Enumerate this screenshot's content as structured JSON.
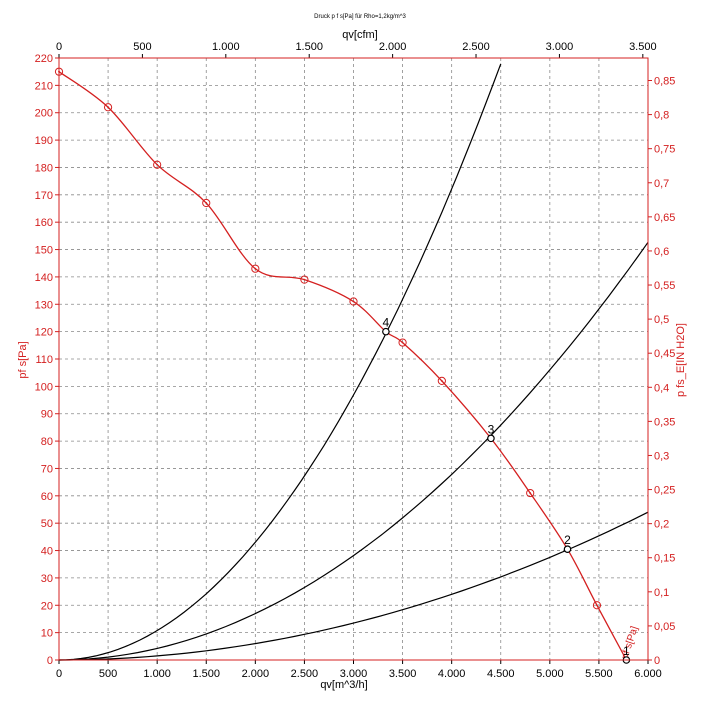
{
  "chart_data": {
    "type": "line",
    "title": "Druck p f s[Pa] für Rho=1,2kg/m^3",
    "xlabel": "qv[m^3/h]",
    "x2label": "qv[cfm]",
    "ylabel": "pf s[Pa]",
    "y2label": "p fs_E[IN H2O]",
    "xlim": [
      0,
      6000
    ],
    "x2lim": [
      0,
      3531
    ],
    "ylim": [
      0,
      220
    ],
    "y2lim": [
      0,
      0.883
    ],
    "grid": true,
    "x_ticks": [
      "0",
      "500",
      "1.000",
      "1.500",
      "2.000",
      "2.500",
      "3.000",
      "3.500",
      "4.000",
      "4.500",
      "5.000",
      "5.500",
      "6.000"
    ],
    "x2_ticks": [
      "0",
      "500",
      "1.000",
      "1.500",
      "2.000",
      "2.500",
      "3.000",
      "3.500"
    ],
    "y_ticks": [
      "0",
      "10",
      "20",
      "30",
      "40",
      "50",
      "60",
      "70",
      "80",
      "90",
      "100",
      "110",
      "120",
      "130",
      "140",
      "150",
      "160",
      "170",
      "180",
      "190",
      "200",
      "210",
      "220"
    ],
    "y2_ticks": [
      "0",
      "0,05",
      "0,1",
      "0,15",
      "0,2",
      "0,25",
      "0,3",
      "0,35",
      "0,4",
      "0,45",
      "0,5",
      "0,55",
      "0,6",
      "0,65",
      "0,7",
      "0,75",
      "0,8",
      "0,85"
    ],
    "fan_curve": {
      "color": "#d42020",
      "end_label": "pf s[Pa]",
      "x": [
        0,
        500,
        1000,
        1500,
        2000,
        2500,
        3000,
        3330,
        3500,
        3900,
        4400,
        4800,
        5180,
        5480,
        5780
      ],
      "y": [
        215,
        202,
        181,
        167,
        143,
        139,
        131,
        120,
        116,
        102,
        81,
        61,
        40.5,
        20,
        0
      ],
      "markers_x": [
        0,
        500,
        1000,
        1500,
        2000,
        2500,
        3000,
        3500,
        3900,
        4800,
        5480
      ],
      "markers_y": [
        215,
        202,
        181,
        167,
        143,
        139,
        131,
        116,
        102,
        61,
        20
      ]
    },
    "system_curves": [
      {
        "color": "#000000",
        "x": [
          0,
          4500
        ],
        "k": 1.076e-05
      },
      {
        "color": "#000000",
        "x": [
          0,
          6000
        ],
        "k": 4.24e-06
      },
      {
        "color": "#000000",
        "x": [
          0,
          6000
        ],
        "k": 1.5e-06
      }
    ],
    "operating_points": [
      {
        "label": "4",
        "x": 3330,
        "y": 120
      },
      {
        "label": "3",
        "x": 4400,
        "y": 81
      },
      {
        "label": "2",
        "x": 5180,
        "y": 40.5
      },
      {
        "label": "1",
        "x": 5780,
        "y": 0
      }
    ]
  },
  "colors": {
    "red": "#d42020",
    "black": "#000000",
    "grid": "#8a8a8a"
  }
}
